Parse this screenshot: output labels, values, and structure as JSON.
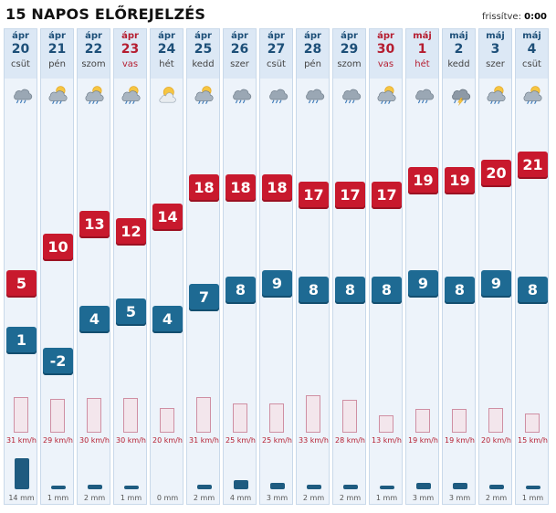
{
  "header": {
    "title": "15 NAPOS ELŐREJELZÉS",
    "updated_label": "frissítve:",
    "updated_time": "0:00"
  },
  "days": [
    {
      "month": "ápr",
      "day": "20",
      "weekday": "csüt",
      "red": false,
      "icon": "rain-cloud-icon",
      "max": "5",
      "min": "1",
      "wind": "31 km/h",
      "wind_kmh": 31,
      "precip": "14 mm",
      "precip_mm": 14
    },
    {
      "month": "ápr",
      "day": "21",
      "weekday": "pén",
      "red": false,
      "icon": "sun-rain-cloud-icon",
      "max": "10",
      "min": "-2",
      "wind": "29 km/h",
      "wind_kmh": 29,
      "precip": "1 mm",
      "precip_mm": 1
    },
    {
      "month": "ápr",
      "day": "22",
      "weekday": "szom",
      "red": false,
      "icon": "sun-rain-cloud-icon",
      "max": "13",
      "min": "4",
      "wind": "30 km/h",
      "wind_kmh": 30,
      "precip": "2 mm",
      "precip_mm": 2
    },
    {
      "month": "ápr",
      "day": "23",
      "weekday": "vas",
      "red": true,
      "icon": "sun-rain-cloud-icon",
      "max": "12",
      "min": "5",
      "wind": "30 km/h",
      "wind_kmh": 30,
      "precip": "1 mm",
      "precip_mm": 1
    },
    {
      "month": "ápr",
      "day": "24",
      "weekday": "hét",
      "red": false,
      "icon": "sun-cloud-icon",
      "max": "14",
      "min": "4",
      "wind": "20 km/h",
      "wind_kmh": 20,
      "precip": "0 mm",
      "precip_mm": 0
    },
    {
      "month": "ápr",
      "day": "25",
      "weekday": "kedd",
      "red": false,
      "icon": "sun-rain-cloud-icon",
      "max": "18",
      "min": "7",
      "wind": "31 km/h",
      "wind_kmh": 31,
      "precip": "2 mm",
      "precip_mm": 2
    },
    {
      "month": "ápr",
      "day": "26",
      "weekday": "szer",
      "red": false,
      "icon": "rain-cloud-icon",
      "max": "18",
      "min": "8",
      "wind": "25 km/h",
      "wind_kmh": 25,
      "precip": "4 mm",
      "precip_mm": 4
    },
    {
      "month": "ápr",
      "day": "27",
      "weekday": "csüt",
      "red": false,
      "icon": "rain-cloud-icon",
      "max": "18",
      "min": "9",
      "wind": "25 km/h",
      "wind_kmh": 25,
      "precip": "3 mm",
      "precip_mm": 3
    },
    {
      "month": "ápr",
      "day": "28",
      "weekday": "pén",
      "red": false,
      "icon": "rain-cloud-icon",
      "max": "17",
      "min": "8",
      "wind": "33 km/h",
      "wind_kmh": 33,
      "precip": "2 mm",
      "precip_mm": 2
    },
    {
      "month": "ápr",
      "day": "29",
      "weekday": "szom",
      "red": false,
      "icon": "rain-cloud-icon",
      "max": "17",
      "min": "8",
      "wind": "28 km/h",
      "wind_kmh": 28,
      "precip": "2 mm",
      "precip_mm": 2
    },
    {
      "month": "ápr",
      "day": "30",
      "weekday": "vas",
      "red": true,
      "icon": "sun-rain-cloud-icon",
      "max": "17",
      "min": "8",
      "wind": "13 km/h",
      "wind_kmh": 13,
      "precip": "1 mm",
      "precip_mm": 1
    },
    {
      "month": "máj",
      "day": "1",
      "weekday": "hét",
      "red": true,
      "icon": "rain-cloud-icon",
      "max": "19",
      "min": "9",
      "wind": "19 km/h",
      "wind_kmh": 19,
      "precip": "3 mm",
      "precip_mm": 3
    },
    {
      "month": "máj",
      "day": "2",
      "weekday": "kedd",
      "red": false,
      "icon": "thunder-cloud-icon",
      "max": "19",
      "min": "8",
      "wind": "19 km/h",
      "wind_kmh": 19,
      "precip": "3 mm",
      "precip_mm": 3
    },
    {
      "month": "máj",
      "day": "3",
      "weekday": "szer",
      "red": false,
      "icon": "sun-rain-cloud-icon",
      "max": "20",
      "min": "9",
      "wind": "20 km/h",
      "wind_kmh": 20,
      "precip": "2 mm",
      "precip_mm": 2
    },
    {
      "month": "máj",
      "day": "4",
      "weekday": "csüt",
      "red": false,
      "icon": "sun-rain-cloud-icon",
      "max": "21",
      "min": "8",
      "wind": "15 km/h",
      "wind_kmh": 15,
      "precip": "1 mm",
      "precip_mm": 1
    }
  ]
}
